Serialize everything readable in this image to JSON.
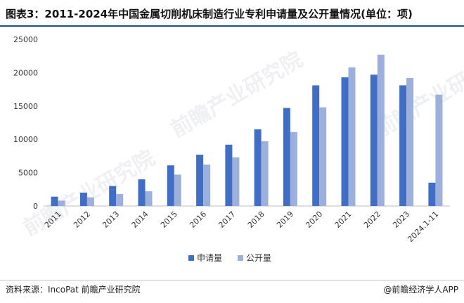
{
  "title": "图表3：2011-2024年中国金属切削机床制造行业专利申请量及公开量情况(单位：项)",
  "footer": {
    "source": "资料来源：IncoPat 前瞻产业研究院",
    "brand": "@前瞻经济学人APP"
  },
  "watermark": "前瞻产业研究院",
  "colors": {
    "series1": "#3f6ec4",
    "series2": "#9db0db",
    "axis": "#bfbfbf"
  },
  "chart_data": {
    "type": "bar",
    "categories": [
      "2011",
      "2012",
      "2013",
      "2014",
      "2015",
      "2016",
      "2017",
      "2018",
      "2019",
      "2020",
      "2021",
      "2022",
      "2023",
      "2024.1-11"
    ],
    "series": [
      {
        "name": "申请量",
        "values": [
          1400,
          2000,
          3000,
          4000,
          6100,
          7700,
          9200,
          11500,
          14700,
          18100,
          19300,
          19700,
          18100,
          3500
        ]
      },
      {
        "name": "公开量",
        "values": [
          800,
          1300,
          1800,
          2200,
          4700,
          6200,
          7300,
          9700,
          11100,
          14800,
          20800,
          22700,
          19200,
          16700
        ]
      }
    ],
    "yticks": [
      0,
      5000,
      10000,
      15000,
      20000,
      25000
    ],
    "ylim": [
      0,
      25000
    ],
    "xlabel": "",
    "ylabel": "",
    "legend_position": "bottom-center"
  }
}
